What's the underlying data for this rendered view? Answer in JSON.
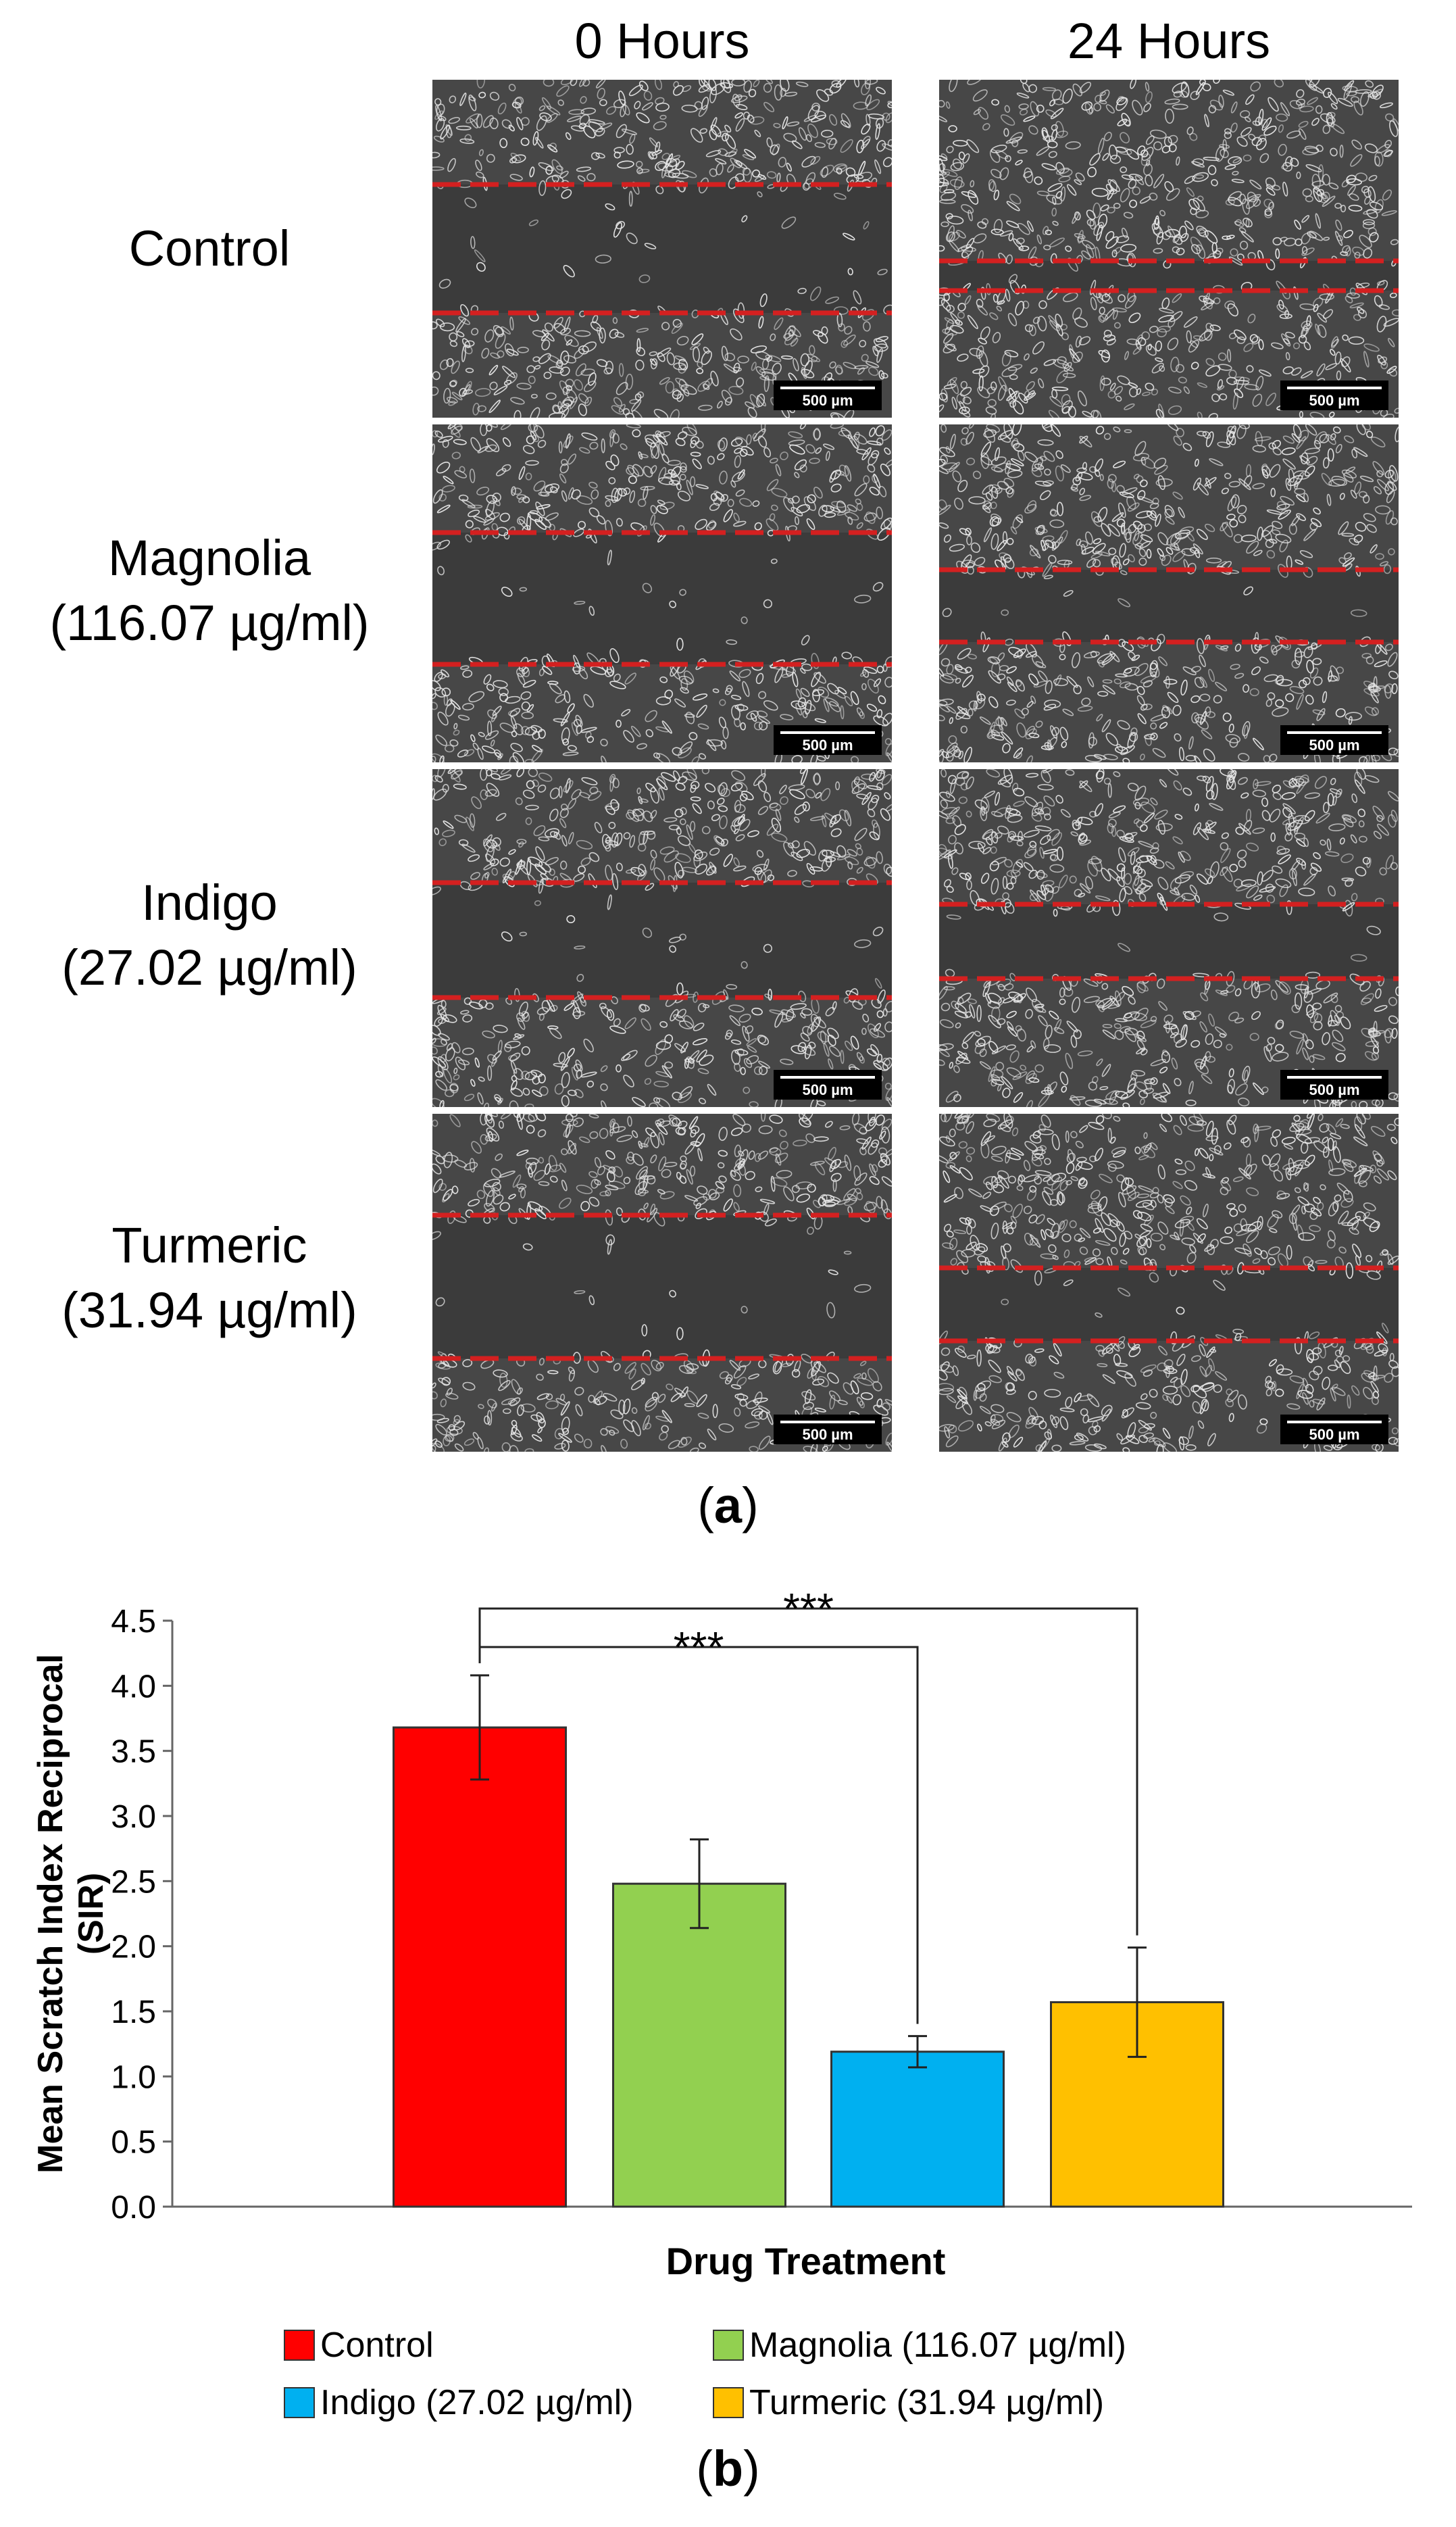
{
  "panel_a": {
    "column_headers": [
      "0 Hours",
      "24 Hours"
    ],
    "rows": [
      {
        "label_line1": "Control",
        "label_line2": ""
      },
      {
        "label_line1": "Magnolia",
        "label_line2": "(116.07 µg/ml)"
      },
      {
        "label_line1": "Indigo",
        "label_line2": "(27.02 µg/ml)"
      },
      {
        "label_line1": "Turmeric",
        "label_line2": "(31.94 µg/ml)"
      }
    ],
    "scale_bar_label": "500 µm",
    "caption_letter": "a",
    "colors": {
      "scratch_line": "#d42020",
      "background": "#474747",
      "cells": "#e6e6e6"
    }
  },
  "panel_b": {
    "caption_letter": "b"
  },
  "chart_data": {
    "type": "bar",
    "title": "",
    "xlabel": "Drug Treatment",
    "ylabel_line1": "Mean Scratch Index Reciprocal",
    "ylabel_line2": "(SIR)",
    "ylim": [
      0,
      4.5
    ],
    "yticks": [
      "0.0",
      "0.5",
      "1.0",
      "1.5",
      "2.0",
      "2.5",
      "3.0",
      "3.5",
      "4.0",
      "4.5"
    ],
    "categories": [
      "Control",
      "Magnolia (116.07 µg/ml)",
      "Indigo (27.02 µg/ml)",
      "Turmeric (31.94 µg/ml)"
    ],
    "values": [
      3.68,
      2.48,
      1.19,
      1.57
    ],
    "errors": [
      0.4,
      0.34,
      0.12,
      0.42
    ],
    "colors": [
      "#ff0000",
      "#92d050",
      "#00b0f0",
      "#ffc000"
    ],
    "significance": [
      {
        "from": "Control",
        "to": "Indigo (27.02 µg/ml)",
        "label": "***"
      },
      {
        "from": "Control",
        "to": "Turmeric (31.94 µg/ml)",
        "label": "***"
      }
    ],
    "legend": {
      "position": "bottom",
      "entries": [
        "Control",
        "Magnolia (116.07 µg/ml)",
        "Indigo (27.02 µg/ml)",
        "Turmeric (31.94 µg/ml)"
      ]
    },
    "grid": false
  }
}
